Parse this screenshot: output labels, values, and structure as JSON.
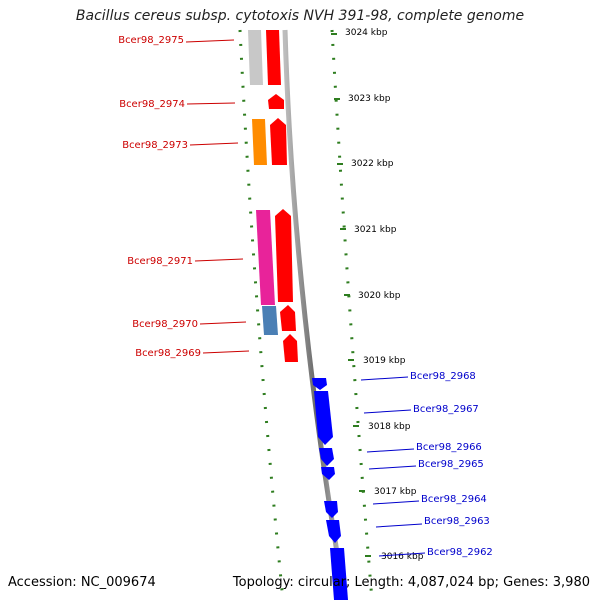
{
  "title": "Bacillus cereus subsp. cytotoxis NVH 391-98, complete genome",
  "footer": {
    "accession": "Accession: NC_009674",
    "summary": "Topology: circular; Length: 4,087,024 bp; Genes: 3,980"
  },
  "colors": {
    "backbone": "#888888",
    "scale_ticks": "#2e7d1f",
    "reverse_labels": "#cc0000",
    "forward_labels": "#0000cc",
    "cds": "#ff0000",
    "forward_cds": "#0000ff"
  },
  "scale_labels": [
    "3024 kbp",
    "3023 kbp",
    "3022 kbp",
    "3021 kbp",
    "3020 kbp",
    "3019 kbp",
    "3018 kbp",
    "3017 kbp",
    "3016 kbp"
  ],
  "reverse_genes": [
    "Bcer98_2975",
    "Bcer98_2974",
    "Bcer98_2973",
    "Bcer98_2971",
    "Bcer98_2970",
    "Bcer98_2969"
  ],
  "forward_genes": [
    "Bcer98_2968",
    "Bcer98_2967",
    "Bcer98_2966",
    "Bcer98_2965",
    "Bcer98_2964",
    "Bcer98_2963",
    "Bcer98_2962"
  ]
}
